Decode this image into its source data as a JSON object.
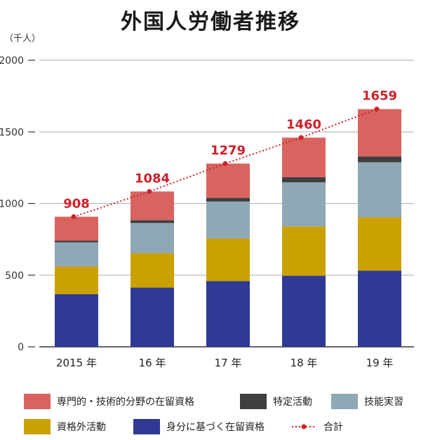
{
  "chart_data": {
    "type": "bar",
    "stacked": true,
    "title": "外国人労働者推移",
    "unit_label": "（千人）",
    "categories": [
      "2015 年",
      "16 年",
      "17 年",
      "18 年",
      "19 年"
    ],
    "ylim": [
      0,
      2000
    ],
    "yticks": [
      0,
      500,
      1000,
      1500,
      2000
    ],
    "grid": true,
    "series": [
      {
        "name": "身分に基づく在留資格",
        "color": "#2e3a93",
        "values": [
          367,
          413,
          459,
          496,
          532
        ]
      },
      {
        "name": "資格外活動",
        "color": "#c9a100",
        "values": [
          193,
          240,
          297,
          344,
          372
        ]
      },
      {
        "name": "技能実習",
        "color": "#8fa8b6",
        "values": [
          169,
          211,
          258,
          308,
          384
        ]
      },
      {
        "name": "特定活動",
        "color": "#3f3f3f",
        "values": [
          12,
          20,
          26,
          36,
          41
        ]
      },
      {
        "name": "専門的・技術的分野の在留資格",
        "color": "#d9645f",
        "values": [
          167,
          200,
          239,
          276,
          330
        ]
      }
    ],
    "total": {
      "name": "合計",
      "color": "#d0202a",
      "values": [
        908,
        1084,
        1279,
        1460,
        1659
      ]
    }
  },
  "legend": {
    "row1": [
      "専門的・技術的分野の在留資格",
      "特定活動",
      "技能実習"
    ],
    "row2": [
      "資格外活動",
      "身分に基づく在留資格",
      "合計"
    ]
  }
}
